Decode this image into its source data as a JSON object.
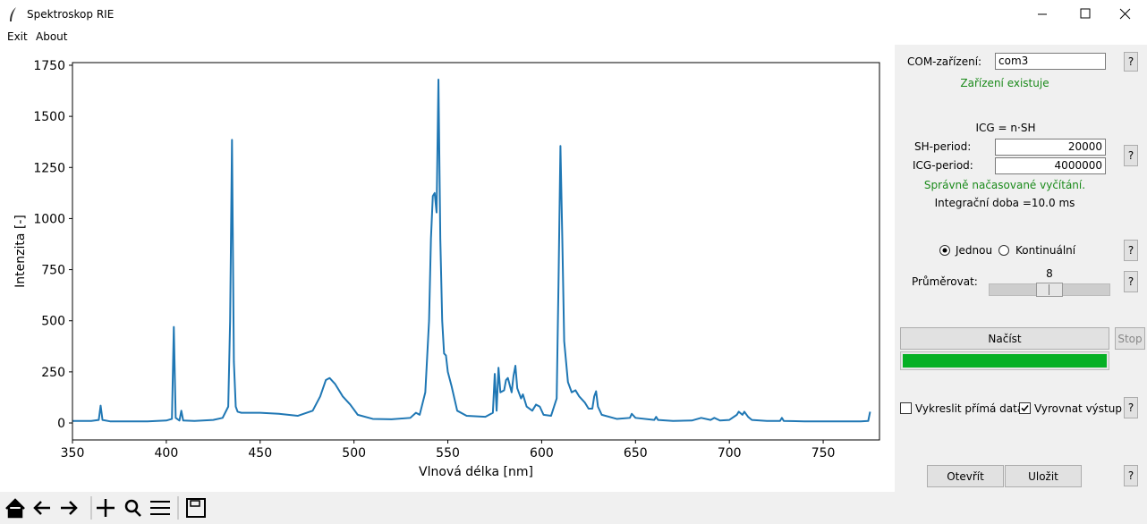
{
  "window": {
    "title": "Spektroskop RIE"
  },
  "menu": [
    "Exit",
    "About"
  ],
  "panel": {
    "com_label": "COM-zařízení:",
    "com_value": "com3",
    "com_status": "Zařízení existuje",
    "formula": "ICG = n·SH",
    "sh_label": "SH-period:",
    "sh_value": "20000",
    "icg_label": "ICG-period:",
    "icg_value": "4000000",
    "timing_status": "Správně načasované vyčítání.",
    "integration": "Integrační doba =10.0 ms",
    "mode_options": [
      "Jednou",
      "Kontinuální"
    ],
    "average_label": "Průměrovat:",
    "average_value": 8,
    "load": "Načíst",
    "stop": "Stop",
    "raw_data": "Vykreslit přímá data",
    "equalize": "Vyrovnat výstup",
    "open": "Otevřít",
    "save": "Uložit",
    "help": "?"
  },
  "chart_data": {
    "type": "line",
    "xlabel": "Vlnová délka [nm]",
    "ylabel": "Intenzita [-]",
    "color": "#1f77b4",
    "x": [
      350,
      360,
      364,
      365,
      366,
      370,
      380,
      390,
      400,
      403,
      404,
      405,
      407,
      408,
      409,
      415,
      425,
      430,
      433,
      434,
      435,
      436,
      437,
      438,
      440,
      450,
      460,
      470,
      478,
      482,
      485,
      487,
      490,
      494,
      498,
      502,
      510,
      520,
      530,
      533,
      535,
      538,
      540,
      541,
      542,
      543,
      544,
      545,
      546,
      547,
      548,
      549,
      550,
      552,
      555,
      560,
      570,
      574,
      575,
      576,
      577,
      578,
      580,
      581,
      582,
      584,
      585,
      586,
      587,
      589,
      590,
      592,
      595,
      597,
      599,
      601,
      605,
      608,
      609,
      610,
      611,
      612,
      614,
      616,
      618,
      620,
      623,
      625,
      627,
      628,
      629,
      630,
      632,
      640,
      647,
      648,
      650,
      660,
      661,
      662,
      670,
      680,
      685,
      690,
      692,
      695,
      700,
      704,
      705,
      707,
      708,
      710,
      712,
      720,
      727,
      728,
      729,
      740,
      750,
      760,
      770,
      774,
      775
    ],
    "values": [
      10,
      10,
      15,
      85,
      15,
      8,
      8,
      8,
      12,
      20,
      470,
      25,
      12,
      60,
      12,
      10,
      15,
      25,
      80,
      500,
      1385,
      300,
      80,
      55,
      50,
      50,
      45,
      35,
      60,
      130,
      210,
      220,
      190,
      130,
      90,
      40,
      20,
      18,
      25,
      50,
      40,
      150,
      500,
      900,
      1110,
      1125,
      1030,
      1680,
      900,
      500,
      340,
      330,
      250,
      180,
      60,
      35,
      30,
      50,
      240,
      60,
      270,
      150,
      160,
      210,
      220,
      150,
      230,
      280,
      170,
      120,
      140,
      80,
      60,
      90,
      80,
      40,
      35,
      120,
      700,
      1355,
      900,
      400,
      200,
      150,
      160,
      130,
      100,
      70,
      70,
      130,
      155,
      80,
      40,
      20,
      25,
      45,
      25,
      15,
      30,
      15,
      10,
      12,
      25,
      15,
      25,
      12,
      15,
      40,
      55,
      40,
      55,
      30,
      15,
      10,
      10,
      25,
      10,
      8,
      8,
      8,
      8,
      10,
      55
    ],
    "xlim": [
      350,
      780
    ],
    "ylim": [
      -83,
      1763
    ],
    "xticks": [
      350,
      400,
      450,
      500,
      550,
      600,
      650,
      700,
      750
    ],
    "yticks": [
      0,
      250,
      500,
      750,
      1000,
      1250,
      1500,
      1750
    ]
  }
}
